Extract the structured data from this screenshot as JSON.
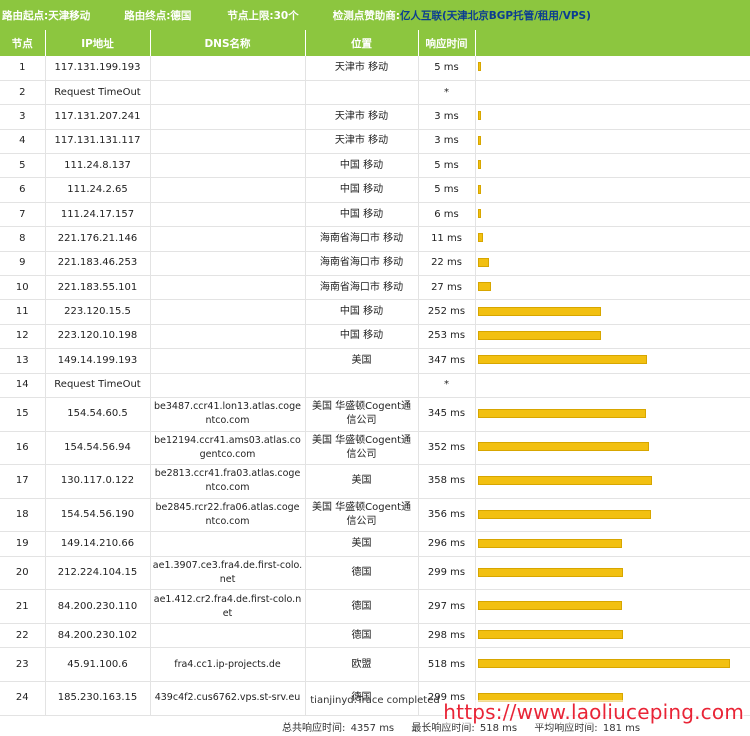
{
  "header": {
    "start_label": "路由起点:",
    "start_value": "天津移动",
    "end_label": "路由终点:",
    "end_value": "德国",
    "limit_label": "节点上限:",
    "limit_value": "30个",
    "sponsor_label": "检测点赞助商:",
    "sponsor_name": "亿人互联",
    "sponsor_desc": "天津北京BGP托管/租用/VPS"
  },
  "columns": [
    "节点",
    "IP地址",
    "DNS名称",
    "位置",
    "响应时间"
  ],
  "max_ms": 518,
  "rows": [
    {
      "node": "1",
      "ip": "117.131.199.193",
      "dns": "",
      "location": "天津市 移动",
      "time": "5 ms",
      "ms": 5
    },
    {
      "node": "2",
      "ip": "Request TimeOut",
      "dns": "",
      "location": "",
      "time": "*",
      "ms": 0
    },
    {
      "node": "3",
      "ip": "117.131.207.241",
      "dns": "",
      "location": "天津市 移动",
      "time": "3 ms",
      "ms": 3
    },
    {
      "node": "4",
      "ip": "117.131.131.117",
      "dns": "",
      "location": "天津市 移动",
      "time": "3 ms",
      "ms": 3
    },
    {
      "node": "5",
      "ip": "111.24.8.137",
      "dns": "",
      "location": "中国 移动",
      "time": "5 ms",
      "ms": 5
    },
    {
      "node": "6",
      "ip": "111.24.2.65",
      "dns": "",
      "location": "中国 移动",
      "time": "5 ms",
      "ms": 5
    },
    {
      "node": "7",
      "ip": "111.24.17.157",
      "dns": "",
      "location": "中国 移动",
      "time": "6 ms",
      "ms": 6
    },
    {
      "node": "8",
      "ip": "221.176.21.146",
      "dns": "",
      "location": "海南省海口市 移动",
      "time": "11 ms",
      "ms": 11
    },
    {
      "node": "9",
      "ip": "221.183.46.253",
      "dns": "",
      "location": "海南省海口市 移动",
      "time": "22 ms",
      "ms": 22
    },
    {
      "node": "10",
      "ip": "221.183.55.101",
      "dns": "",
      "location": "海南省海口市 移动",
      "time": "27 ms",
      "ms": 27
    },
    {
      "node": "11",
      "ip": "223.120.15.5",
      "dns": "",
      "location": "中国 移动",
      "time": "252 ms",
      "ms": 252
    },
    {
      "node": "12",
      "ip": "223.120.10.198",
      "dns": "",
      "location": "中国 移动",
      "time": "253 ms",
      "ms": 253
    },
    {
      "node": "13",
      "ip": "149.14.199.193",
      "dns": "",
      "location": "美国",
      "time": "347 ms",
      "ms": 347
    },
    {
      "node": "14",
      "ip": "Request TimeOut",
      "dns": "",
      "location": "",
      "time": "*",
      "ms": 0
    },
    {
      "node": "15",
      "ip": "154.54.60.5",
      "dns": "be3487.ccr41.lon13.atlas.cogentco.com",
      "location": "美国 华盛顿Cogent通信公司",
      "time": "345 ms",
      "ms": 345
    },
    {
      "node": "16",
      "ip": "154.54.56.94",
      "dns": "be12194.ccr41.ams03.atlas.cogentco.com",
      "location": "美国 华盛顿Cogent通信公司",
      "time": "352 ms",
      "ms": 352
    },
    {
      "node": "17",
      "ip": "130.117.0.122",
      "dns": "be2813.ccr41.fra03.atlas.cogentco.com",
      "location": "美国",
      "time": "358 ms",
      "ms": 358
    },
    {
      "node": "18",
      "ip": "154.54.56.190",
      "dns": "be2845.rcr22.fra06.atlas.cogentco.com",
      "location": "美国 华盛顿Cogent通信公司",
      "time": "356 ms",
      "ms": 356
    },
    {
      "node": "19",
      "ip": "149.14.210.66",
      "dns": "",
      "location": "美国",
      "time": "296 ms",
      "ms": 296
    },
    {
      "node": "20",
      "ip": "212.224.104.15",
      "dns": "ae1.3907.ce3.fra4.de.first-colo.net",
      "location": "德国",
      "time": "299 ms",
      "ms": 299
    },
    {
      "node": "21",
      "ip": "84.200.230.110",
      "dns": "ae1.412.cr2.fra4.de.first-colo.net",
      "location": "德国",
      "time": "297 ms",
      "ms": 297
    },
    {
      "node": "22",
      "ip": "84.200.230.102",
      "dns": "",
      "location": "德国",
      "time": "298 ms",
      "ms": 298
    },
    {
      "node": "23",
      "ip": "45.91.100.6",
      "dns": "fra4.cc1.ip-projects.de",
      "location": "欧盟",
      "time": "518 ms",
      "ms": 518
    },
    {
      "node": "24",
      "ip": "185.230.163.15",
      "dns": "439c4f2.cus6762.vps.st-srv.eu",
      "location": "德国",
      "time": "299 ms",
      "ms": 299
    }
  ],
  "footer": {
    "status": "tianjinyd:Trace completed",
    "total_label": "总共响应时间:",
    "total_value": "4357 ms",
    "max_label": "最长响应时间:",
    "max_value": "518 ms",
    "avg_label": "平均响应时间:",
    "avg_value": "181 ms"
  },
  "watermark": "https://www.laoliuceping.com",
  "colors": {
    "header_green": "#8cc63f",
    "bar_yellow": "#f2c011",
    "sponsor_blue": "#0b3d91",
    "watermark_red": "#e8192c"
  }
}
